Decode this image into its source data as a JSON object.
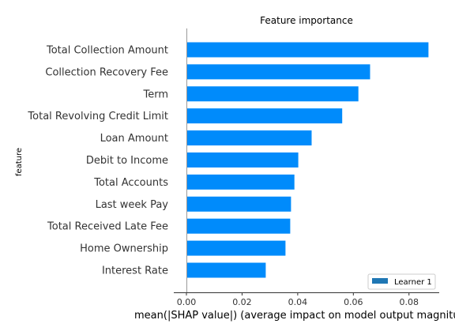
{
  "chart_data": {
    "type": "bar",
    "orientation": "horizontal",
    "title": "Feature importance",
    "xlabel": "mean(|SHAP value|) (average impact on model output magnitude)",
    "ylabel": "feature",
    "xlim": [
      -0.0045,
      0.09
    ],
    "xticks": [
      "0.00",
      "0.02",
      "0.04",
      "0.06",
      "0.08"
    ],
    "categories": [
      "Total Collection Amount",
      "Collection Recovery Fee",
      "Term",
      "Total Revolving Credit Limit",
      "Loan Amount",
      "Debit to Income",
      "Total Accounts",
      "Last week Pay",
      "Total Received Late Fee",
      "Home Ownership",
      "Interest Rate"
    ],
    "series": [
      {
        "name": "Learner 1",
        "color": "#008bfb",
        "values": [
          0.087,
          0.066,
          0.0618,
          0.056,
          0.045,
          0.0402,
          0.0388,
          0.0376,
          0.0373,
          0.0356,
          0.0285
        ]
      }
    ],
    "legend": {
      "position": "bottom-right",
      "swatch_color": "#1f77b4"
    },
    "grid": false
  }
}
